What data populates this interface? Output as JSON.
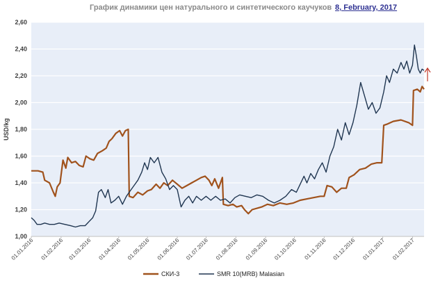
{
  "header": {
    "title": "График динамики цен натурального и синтетического каучуков",
    "date": "8, February, 2017"
  },
  "colors": {
    "ski3": "#a0521c",
    "smr": "#1f3550",
    "plot_bg": "#e8eef8",
    "grid": "#ffffff",
    "arrow": "#c0392b"
  },
  "chart_data": {
    "type": "line",
    "ylabel": "USD/kg",
    "xlabel": "",
    "ylim": [
      1.0,
      2.6
    ],
    "yticks": [
      "1,00",
      "1,20",
      "1,40",
      "1,60",
      "1,80",
      "2,00",
      "2,20",
      "2,40",
      "2,60"
    ],
    "xticks": [
      "01.01.2016",
      "01.02.2016",
      "01.03.2016",
      "01.04.2016",
      "01.05.2016",
      "01.06.2016",
      "01.07.2016",
      "01.08.2016",
      "01.09.2016",
      "01.10.2016",
      "01.11.2016",
      "01.12.2016",
      "01.01.2017",
      "01.02.2017"
    ],
    "xlim": [
      "2016-01-01",
      "2017-02-13"
    ],
    "grid": "horizontal",
    "legend_position": "bottom",
    "trend_arrow": "up",
    "series": [
      {
        "name": "СКИ-3",
        "color": "#a0521c",
        "points": [
          [
            "2016-01-01",
            1.49
          ],
          [
            "2016-01-08",
            1.49
          ],
          [
            "2016-01-13",
            1.48
          ],
          [
            "2016-01-15",
            1.42
          ],
          [
            "2016-01-20",
            1.4
          ],
          [
            "2016-01-24",
            1.33
          ],
          [
            "2016-01-26",
            1.3
          ],
          [
            "2016-01-28",
            1.37
          ],
          [
            "2016-01-31",
            1.4
          ],
          [
            "2016-02-03",
            1.57
          ],
          [
            "2016-02-06",
            1.51
          ],
          [
            "2016-02-08",
            1.59
          ],
          [
            "2016-02-12",
            1.55
          ],
          [
            "2016-02-16",
            1.56
          ],
          [
            "2016-02-20",
            1.53
          ],
          [
            "2016-02-24",
            1.52
          ],
          [
            "2016-02-27",
            1.6
          ],
          [
            "2016-03-02",
            1.58
          ],
          [
            "2016-03-06",
            1.57
          ],
          [
            "2016-03-10",
            1.62
          ],
          [
            "2016-03-15",
            1.64
          ],
          [
            "2016-03-19",
            1.66
          ],
          [
            "2016-03-22",
            1.71
          ],
          [
            "2016-03-25",
            1.73
          ],
          [
            "2016-03-29",
            1.77
          ],
          [
            "2016-04-02",
            1.79
          ],
          [
            "2016-04-05",
            1.75
          ],
          [
            "2016-04-08",
            1.79
          ],
          [
            "2016-04-11",
            1.8
          ],
          [
            "2016-04-12",
            1.3
          ],
          [
            "2016-04-16",
            1.29
          ],
          [
            "2016-04-21",
            1.33
          ],
          [
            "2016-04-26",
            1.31
          ],
          [
            "2016-05-01",
            1.34
          ],
          [
            "2016-05-05",
            1.35
          ],
          [
            "2016-05-10",
            1.39
          ],
          [
            "2016-05-14",
            1.36
          ],
          [
            "2016-05-18",
            1.4
          ],
          [
            "2016-05-22",
            1.38
          ],
          [
            "2016-05-27",
            1.42
          ],
          [
            "2016-06-01",
            1.39
          ],
          [
            "2016-06-06",
            1.36
          ],
          [
            "2016-06-11",
            1.38
          ],
          [
            "2016-06-16",
            1.4
          ],
          [
            "2016-06-21",
            1.42
          ],
          [
            "2016-06-26",
            1.44
          ],
          [
            "2016-06-30",
            1.45
          ],
          [
            "2016-07-04",
            1.42
          ],
          [
            "2016-07-07",
            1.38
          ],
          [
            "2016-07-10",
            1.43
          ],
          [
            "2016-07-14",
            1.36
          ],
          [
            "2016-07-18",
            1.44
          ],
          [
            "2016-07-19",
            1.24
          ],
          [
            "2016-07-24",
            1.23
          ],
          [
            "2016-07-29",
            1.24
          ],
          [
            "2016-08-02",
            1.22
          ],
          [
            "2016-08-07",
            1.23
          ],
          [
            "2016-08-10",
            1.2
          ],
          [
            "2016-08-14",
            1.17
          ],
          [
            "2016-08-18",
            1.2
          ],
          [
            "2016-08-23",
            1.21
          ],
          [
            "2016-08-28",
            1.22
          ],
          [
            "2016-09-03",
            1.24
          ],
          [
            "2016-09-09",
            1.23
          ],
          [
            "2016-09-16",
            1.25
          ],
          [
            "2016-09-23",
            1.24
          ],
          [
            "2016-09-30",
            1.25
          ],
          [
            "2016-10-07",
            1.27
          ],
          [
            "2016-10-14",
            1.28
          ],
          [
            "2016-10-21",
            1.29
          ],
          [
            "2016-10-28",
            1.3
          ],
          [
            "2016-11-01",
            1.3
          ],
          [
            "2016-11-04",
            1.38
          ],
          [
            "2016-11-09",
            1.37
          ],
          [
            "2016-11-14",
            1.33
          ],
          [
            "2016-11-19",
            1.36
          ],
          [
            "2016-11-24",
            1.36
          ],
          [
            "2016-11-27",
            1.44
          ],
          [
            "2016-12-02",
            1.46
          ],
          [
            "2016-12-08",
            1.5
          ],
          [
            "2016-12-14",
            1.51
          ],
          [
            "2016-12-20",
            1.54
          ],
          [
            "2016-12-26",
            1.55
          ],
          [
            "2016-12-31",
            1.55
          ],
          [
            "2017-01-02",
            1.83
          ],
          [
            "2017-01-06",
            1.84
          ],
          [
            "2017-01-12",
            1.86
          ],
          [
            "2017-01-20",
            1.87
          ],
          [
            "2017-01-28",
            1.85
          ],
          [
            "2017-02-01",
            1.83
          ],
          [
            "2017-02-02",
            2.09
          ],
          [
            "2017-02-06",
            2.1
          ],
          [
            "2017-02-09",
            2.08
          ],
          [
            "2017-02-11",
            2.12
          ],
          [
            "2017-02-13",
            2.1
          ]
        ]
      },
      {
        "name": "SMR 10(MRB) Malasian",
        "color": "#1f3550",
        "points": [
          [
            "2016-01-01",
            1.14
          ],
          [
            "2016-01-04",
            1.12
          ],
          [
            "2016-01-07",
            1.09
          ],
          [
            "2016-01-11",
            1.09
          ],
          [
            "2016-01-15",
            1.1
          ],
          [
            "2016-01-20",
            1.09
          ],
          [
            "2016-01-25",
            1.09
          ],
          [
            "2016-01-30",
            1.1
          ],
          [
            "2016-02-05",
            1.09
          ],
          [
            "2016-02-11",
            1.08
          ],
          [
            "2016-02-16",
            1.07
          ],
          [
            "2016-02-21",
            1.08
          ],
          [
            "2016-02-26",
            1.08
          ],
          [
            "2016-03-01",
            1.11
          ],
          [
            "2016-03-05",
            1.14
          ],
          [
            "2016-03-08",
            1.19
          ],
          [
            "2016-03-11",
            1.33
          ],
          [
            "2016-03-14",
            1.35
          ],
          [
            "2016-03-18",
            1.29
          ],
          [
            "2016-03-21",
            1.35
          ],
          [
            "2016-03-24",
            1.25
          ],
          [
            "2016-03-28",
            1.27
          ],
          [
            "2016-04-01",
            1.3
          ],
          [
            "2016-04-05",
            1.24
          ],
          [
            "2016-04-09",
            1.3
          ],
          [
            "2016-04-13",
            1.34
          ],
          [
            "2016-04-17",
            1.38
          ],
          [
            "2016-04-21",
            1.42
          ],
          [
            "2016-04-25",
            1.48
          ],
          [
            "2016-04-28",
            1.55
          ],
          [
            "2016-05-01",
            1.5
          ],
          [
            "2016-05-04",
            1.59
          ],
          [
            "2016-05-08",
            1.55
          ],
          [
            "2016-05-12",
            1.59
          ],
          [
            "2016-05-16",
            1.48
          ],
          [
            "2016-05-20",
            1.43
          ],
          [
            "2016-05-24",
            1.35
          ],
          [
            "2016-05-28",
            1.38
          ],
          [
            "2016-06-01",
            1.35
          ],
          [
            "2016-06-05",
            1.22
          ],
          [
            "2016-06-09",
            1.27
          ],
          [
            "2016-06-13",
            1.3
          ],
          [
            "2016-06-17",
            1.25
          ],
          [
            "2016-06-21",
            1.3
          ],
          [
            "2016-06-26",
            1.27
          ],
          [
            "2016-07-01",
            1.3
          ],
          [
            "2016-07-06",
            1.27
          ],
          [
            "2016-07-11",
            1.3
          ],
          [
            "2016-07-16",
            1.27
          ],
          [
            "2016-07-21",
            1.28
          ],
          [
            "2016-07-26",
            1.25
          ],
          [
            "2016-07-31",
            1.29
          ],
          [
            "2016-08-05",
            1.31
          ],
          [
            "2016-08-11",
            1.3
          ],
          [
            "2016-08-17",
            1.29
          ],
          [
            "2016-08-23",
            1.31
          ],
          [
            "2016-08-29",
            1.3
          ],
          [
            "2016-09-04",
            1.27
          ],
          [
            "2016-09-10",
            1.25
          ],
          [
            "2016-09-16",
            1.27
          ],
          [
            "2016-09-22",
            1.3
          ],
          [
            "2016-09-28",
            1.35
          ],
          [
            "2016-10-03",
            1.33
          ],
          [
            "2016-10-07",
            1.39
          ],
          [
            "2016-10-11",
            1.45
          ],
          [
            "2016-10-14",
            1.4
          ],
          [
            "2016-10-18",
            1.47
          ],
          [
            "2016-10-22",
            1.43
          ],
          [
            "2016-10-26",
            1.5
          ],
          [
            "2016-10-30",
            1.55
          ],
          [
            "2016-11-03",
            1.48
          ],
          [
            "2016-11-07",
            1.6
          ],
          [
            "2016-11-11",
            1.67
          ],
          [
            "2016-11-15",
            1.8
          ],
          [
            "2016-11-19",
            1.72
          ],
          [
            "2016-11-23",
            1.85
          ],
          [
            "2016-11-27",
            1.76
          ],
          [
            "2016-12-01",
            1.85
          ],
          [
            "2016-12-05",
            1.98
          ],
          [
            "2016-12-09",
            2.15
          ],
          [
            "2016-12-13",
            2.05
          ],
          [
            "2016-12-17",
            1.95
          ],
          [
            "2016-12-21",
            2.0
          ],
          [
            "2016-12-25",
            1.92
          ],
          [
            "2016-12-29",
            1.96
          ],
          [
            "2017-01-02",
            2.08
          ],
          [
            "2017-01-05",
            2.2
          ],
          [
            "2017-01-08",
            2.15
          ],
          [
            "2017-01-12",
            2.25
          ],
          [
            "2017-01-16",
            2.22
          ],
          [
            "2017-01-20",
            2.3
          ],
          [
            "2017-01-23",
            2.25
          ],
          [
            "2017-01-26",
            2.31
          ],
          [
            "2017-01-29",
            2.22
          ],
          [
            "2017-02-01",
            2.28
          ],
          [
            "2017-02-03",
            2.43
          ],
          [
            "2017-02-05",
            2.35
          ],
          [
            "2017-02-07",
            2.25
          ],
          [
            "2017-02-09",
            2.22
          ],
          [
            "2017-02-11",
            2.25
          ],
          [
            "2017-02-13",
            2.24
          ]
        ]
      }
    ]
  }
}
